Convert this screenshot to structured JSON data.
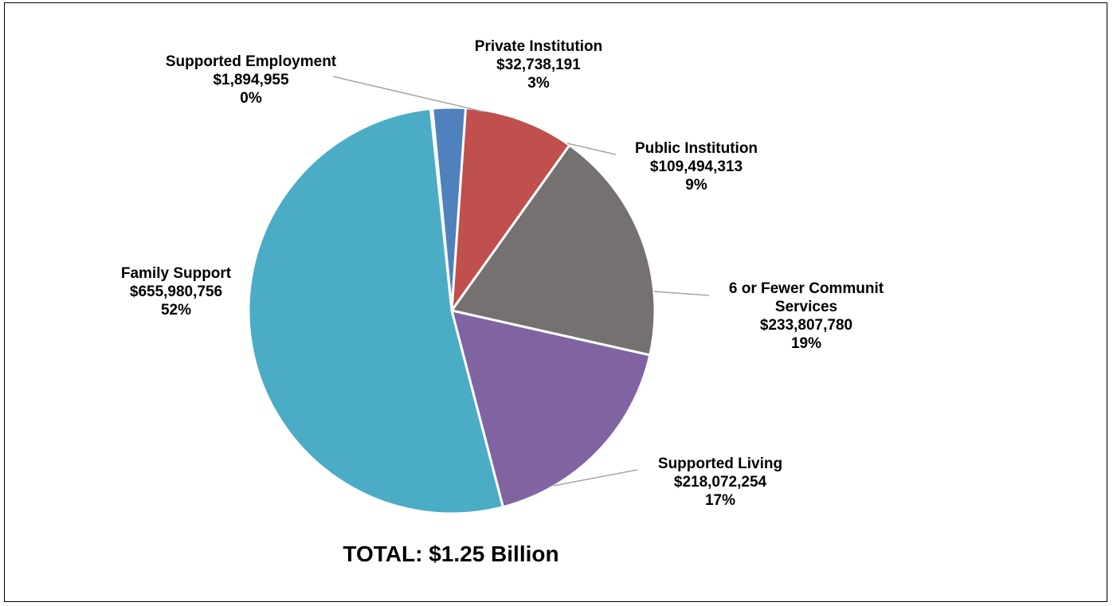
{
  "chart_data": {
    "type": "pie",
    "title": "TOTAL: $1.25 Billion",
    "slices": [
      {
        "name": "Supported Employment",
        "label_lines": [
          "Supported Employment",
          "$1,894,955",
          "0%"
        ],
        "amount": "$1,894,955",
        "percent": "0%",
        "value": 1894955,
        "color": "#4a7ebb"
      },
      {
        "name": "Private Institution",
        "label_lines": [
          "Private Institution",
          "$32,738,191",
          "3%"
        ],
        "amount": "$32,738,191",
        "percent": "3%",
        "value": 32738191,
        "color": "#4f81bd"
      },
      {
        "name": "Public Institution",
        "label_lines": [
          "Public Institution",
          "$109,494,313",
          "9%"
        ],
        "amount": "$109,494,313",
        "percent": "9%",
        "value": 109494313,
        "color": "#c0504d"
      },
      {
        "name": "6 or Fewer Communit Services",
        "label_lines": [
          "6 or Fewer Communit",
          "Services",
          "$233,807,780",
          "19%"
        ],
        "amount": "$233,807,780",
        "percent": "19%",
        "value": 233807780,
        "color": "#767171"
      },
      {
        "name": "Supported Living",
        "label_lines": [
          "Supported Living",
          "$218,072,254",
          "17%"
        ],
        "amount": "$218,072,254",
        "percent": "17%",
        "value": 218072254,
        "color": "#8064a2"
      },
      {
        "name": "Family Support",
        "label_lines": [
          "Family Support",
          "$655,980,756",
          "52%"
        ],
        "amount": "$655,980,756",
        "percent": "52%",
        "value": 655980756,
        "color": "#4bacc6"
      }
    ]
  }
}
